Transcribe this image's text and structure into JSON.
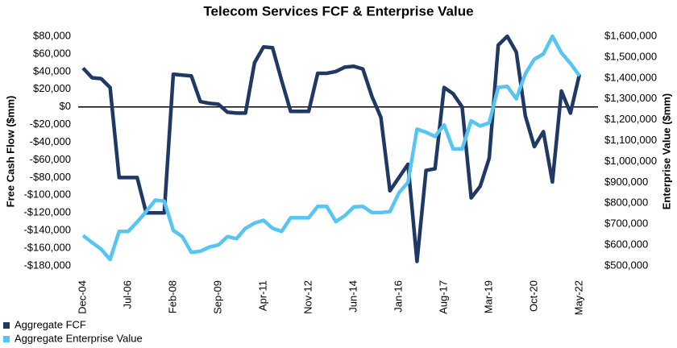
{
  "chart_data": {
    "type": "line",
    "title": "Telecom Services FCF & Enterprise Value",
    "y_label": "Free Cash Flow ($mm)",
    "y2_label": "Enterprise Value ($mm)",
    "categories": [
      "Dec-04",
      null,
      null,
      null,
      null,
      "Jul-06",
      null,
      null,
      null,
      null,
      "Feb-08",
      null,
      null,
      null,
      null,
      "Sep-09",
      null,
      null,
      null,
      null,
      "Apr-11",
      null,
      null,
      null,
      null,
      "Nov-12",
      null,
      null,
      null,
      null,
      "Jun-14",
      null,
      null,
      null,
      null,
      "Jan-16",
      null,
      null,
      null,
      null,
      "Aug-17",
      null,
      null,
      null,
      null,
      "Mar-19",
      null,
      null,
      null,
      null,
      "Oct-20",
      null,
      null,
      null,
      null,
      "May-22"
    ],
    "series": [
      {
        "name": "Aggregate FCF",
        "color": "#203864",
        "axis": "y",
        "values": [
          44000,
          33000,
          32000,
          22000,
          -80000,
          -80000,
          -80000,
          -120000,
          -120000,
          -120000,
          37000,
          36000,
          35000,
          6000,
          4000,
          3000,
          -6000,
          -7000,
          -7000,
          50000,
          68000,
          67000,
          30000,
          -5000,
          -5000,
          -5000,
          38000,
          38000,
          40000,
          45000,
          46000,
          43000,
          12000,
          -12000,
          -95000,
          -80000,
          -65000,
          -175000,
          -72000,
          -70000,
          22000,
          15000,
          0,
          -103000,
          -90000,
          -58000,
          70000,
          80000,
          62000,
          -10000,
          -45000,
          -28000,
          -85000,
          18000,
          -7000,
          37000
        ]
      },
      {
        "name": "Aggregate Enterprise Value",
        "color": "#56c5f3",
        "axis": "y2",
        "values": [
          645000,
          612000,
          580000,
          530000,
          665000,
          665000,
          710000,
          760000,
          815000,
          810000,
          670000,
          640000,
          565000,
          570000,
          590000,
          600000,
          640000,
          630000,
          680000,
          705000,
          718000,
          680000,
          665000,
          730000,
          730000,
          730000,
          785000,
          785000,
          712000,
          740000,
          782000,
          785000,
          755000,
          755000,
          760000,
          850000,
          900000,
          1155000,
          1140000,
          1120000,
          1175000,
          1060000,
          1060000,
          1195000,
          1170000,
          1185000,
          1355000,
          1360000,
          1300000,
          1420000,
          1490000,
          1515000,
          1600000,
          1520000,
          1470000,
          1410000
        ]
      }
    ],
    "ylim": [
      -180000,
      80000
    ],
    "yticks": [
      {
        "value": -180000,
        "label": "-$180,000"
      },
      {
        "value": -160000,
        "label": "-$160,000"
      },
      {
        "value": -140000,
        "label": "-$140,000"
      },
      {
        "value": -120000,
        "label": "-$120,000"
      },
      {
        "value": -100000,
        "label": "-$100,000"
      },
      {
        "value": -80000,
        "label": "-$80,000"
      },
      {
        "value": -60000,
        "label": "-$60,000"
      },
      {
        "value": -40000,
        "label": "-$40,000"
      },
      {
        "value": -20000,
        "label": "-$20,000"
      },
      {
        "value": 0,
        "label": "$0"
      },
      {
        "value": 20000,
        "label": "$20,000"
      },
      {
        "value": 40000,
        "label": "$40,000"
      },
      {
        "value": 60000,
        "label": "$60,000"
      },
      {
        "value": 80000,
        "label": "$80,000"
      }
    ],
    "y2lim": [
      500000,
      1600000
    ],
    "y2ticks": [
      {
        "value": 500000,
        "label": "$500,000"
      },
      {
        "value": 600000,
        "label": "$600,000"
      },
      {
        "value": 700000,
        "label": "$700,000"
      },
      {
        "value": 800000,
        "label": "$800,000"
      },
      {
        "value": 900000,
        "label": "$900,000"
      },
      {
        "value": 1000000,
        "label": "$1,000,000"
      },
      {
        "value": 1100000,
        "label": "$1,100,000"
      },
      {
        "value": 1200000,
        "label": "$1,200,000"
      },
      {
        "value": 1300000,
        "label": "$1,300,000"
      },
      {
        "value": 1400000,
        "label": "$1,400,000"
      },
      {
        "value": 1500000,
        "label": "$1,500,000"
      },
      {
        "value": 1600000,
        "label": "$1,600,000"
      }
    ],
    "legend": "bottom-left"
  }
}
